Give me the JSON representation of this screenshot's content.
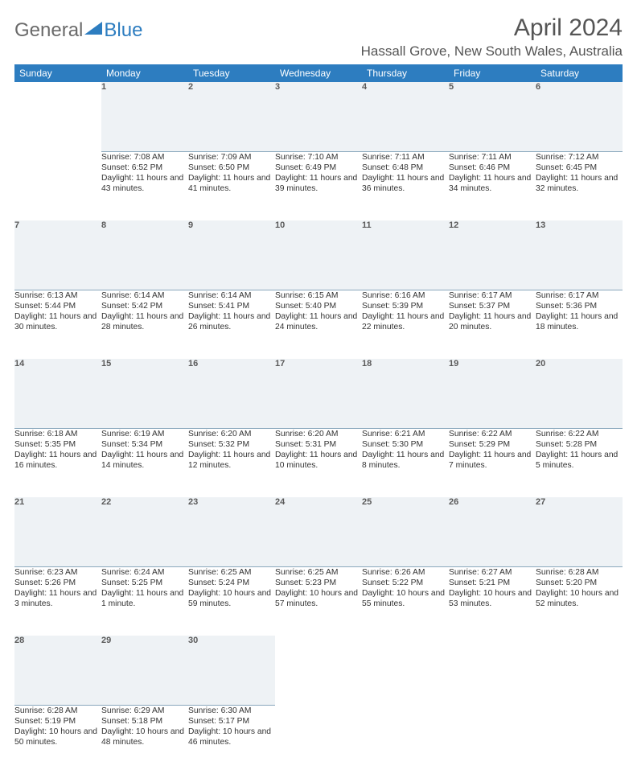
{
  "logo": {
    "text1": "General",
    "text2": "Blue",
    "triangle_color": "#2d7dc0"
  },
  "title": "April 2024",
  "location": "Hassall Grove, New South Wales, Australia",
  "colors": {
    "header_bg": "#2d7dc0",
    "header_text": "#ffffff",
    "daynum_bg": "#eef2f5",
    "daynum_border": "#8aa8bd",
    "body_text": "#333333",
    "title_text": "#555555"
  },
  "day_headers": [
    "Sunday",
    "Monday",
    "Tuesday",
    "Wednesday",
    "Thursday",
    "Friday",
    "Saturday"
  ],
  "weeks": [
    [
      {
        "empty": true
      },
      {
        "num": "1",
        "sr": "Sunrise: 7:08 AM",
        "ss": "Sunset: 6:52 PM",
        "dl": "Daylight: 11 hours and 43 minutes."
      },
      {
        "num": "2",
        "sr": "Sunrise: 7:09 AM",
        "ss": "Sunset: 6:50 PM",
        "dl": "Daylight: 11 hours and 41 minutes."
      },
      {
        "num": "3",
        "sr": "Sunrise: 7:10 AM",
        "ss": "Sunset: 6:49 PM",
        "dl": "Daylight: 11 hours and 39 minutes."
      },
      {
        "num": "4",
        "sr": "Sunrise: 7:11 AM",
        "ss": "Sunset: 6:48 PM",
        "dl": "Daylight: 11 hours and 36 minutes."
      },
      {
        "num": "5",
        "sr": "Sunrise: 7:11 AM",
        "ss": "Sunset: 6:46 PM",
        "dl": "Daylight: 11 hours and 34 minutes."
      },
      {
        "num": "6",
        "sr": "Sunrise: 7:12 AM",
        "ss": "Sunset: 6:45 PM",
        "dl": "Daylight: 11 hours and 32 minutes."
      }
    ],
    [
      {
        "num": "7",
        "sr": "Sunrise: 6:13 AM",
        "ss": "Sunset: 5:44 PM",
        "dl": "Daylight: 11 hours and 30 minutes."
      },
      {
        "num": "8",
        "sr": "Sunrise: 6:14 AM",
        "ss": "Sunset: 5:42 PM",
        "dl": "Daylight: 11 hours and 28 minutes."
      },
      {
        "num": "9",
        "sr": "Sunrise: 6:14 AM",
        "ss": "Sunset: 5:41 PM",
        "dl": "Daylight: 11 hours and 26 minutes."
      },
      {
        "num": "10",
        "sr": "Sunrise: 6:15 AM",
        "ss": "Sunset: 5:40 PM",
        "dl": "Daylight: 11 hours and 24 minutes."
      },
      {
        "num": "11",
        "sr": "Sunrise: 6:16 AM",
        "ss": "Sunset: 5:39 PM",
        "dl": "Daylight: 11 hours and 22 minutes."
      },
      {
        "num": "12",
        "sr": "Sunrise: 6:17 AM",
        "ss": "Sunset: 5:37 PM",
        "dl": "Daylight: 11 hours and 20 minutes."
      },
      {
        "num": "13",
        "sr": "Sunrise: 6:17 AM",
        "ss": "Sunset: 5:36 PM",
        "dl": "Daylight: 11 hours and 18 minutes."
      }
    ],
    [
      {
        "num": "14",
        "sr": "Sunrise: 6:18 AM",
        "ss": "Sunset: 5:35 PM",
        "dl": "Daylight: 11 hours and 16 minutes."
      },
      {
        "num": "15",
        "sr": "Sunrise: 6:19 AM",
        "ss": "Sunset: 5:34 PM",
        "dl": "Daylight: 11 hours and 14 minutes."
      },
      {
        "num": "16",
        "sr": "Sunrise: 6:20 AM",
        "ss": "Sunset: 5:32 PM",
        "dl": "Daylight: 11 hours and 12 minutes."
      },
      {
        "num": "17",
        "sr": "Sunrise: 6:20 AM",
        "ss": "Sunset: 5:31 PM",
        "dl": "Daylight: 11 hours and 10 minutes."
      },
      {
        "num": "18",
        "sr": "Sunrise: 6:21 AM",
        "ss": "Sunset: 5:30 PM",
        "dl": "Daylight: 11 hours and 8 minutes."
      },
      {
        "num": "19",
        "sr": "Sunrise: 6:22 AM",
        "ss": "Sunset: 5:29 PM",
        "dl": "Daylight: 11 hours and 7 minutes."
      },
      {
        "num": "20",
        "sr": "Sunrise: 6:22 AM",
        "ss": "Sunset: 5:28 PM",
        "dl": "Daylight: 11 hours and 5 minutes."
      }
    ],
    [
      {
        "num": "21",
        "sr": "Sunrise: 6:23 AM",
        "ss": "Sunset: 5:26 PM",
        "dl": "Daylight: 11 hours and 3 minutes."
      },
      {
        "num": "22",
        "sr": "Sunrise: 6:24 AM",
        "ss": "Sunset: 5:25 PM",
        "dl": "Daylight: 11 hours and 1 minute."
      },
      {
        "num": "23",
        "sr": "Sunrise: 6:25 AM",
        "ss": "Sunset: 5:24 PM",
        "dl": "Daylight: 10 hours and 59 minutes."
      },
      {
        "num": "24",
        "sr": "Sunrise: 6:25 AM",
        "ss": "Sunset: 5:23 PM",
        "dl": "Daylight: 10 hours and 57 minutes."
      },
      {
        "num": "25",
        "sr": "Sunrise: 6:26 AM",
        "ss": "Sunset: 5:22 PM",
        "dl": "Daylight: 10 hours and 55 minutes."
      },
      {
        "num": "26",
        "sr": "Sunrise: 6:27 AM",
        "ss": "Sunset: 5:21 PM",
        "dl": "Daylight: 10 hours and 53 minutes."
      },
      {
        "num": "27",
        "sr": "Sunrise: 6:28 AM",
        "ss": "Sunset: 5:20 PM",
        "dl": "Daylight: 10 hours and 52 minutes."
      }
    ],
    [
      {
        "num": "28",
        "sr": "Sunrise: 6:28 AM",
        "ss": "Sunset: 5:19 PM",
        "dl": "Daylight: 10 hours and 50 minutes."
      },
      {
        "num": "29",
        "sr": "Sunrise: 6:29 AM",
        "ss": "Sunset: 5:18 PM",
        "dl": "Daylight: 10 hours and 48 minutes."
      },
      {
        "num": "30",
        "sr": "Sunrise: 6:30 AM",
        "ss": "Sunset: 5:17 PM",
        "dl": "Daylight: 10 hours and 46 minutes."
      },
      {
        "empty": true
      },
      {
        "empty": true
      },
      {
        "empty": true
      },
      {
        "empty": true
      }
    ]
  ]
}
